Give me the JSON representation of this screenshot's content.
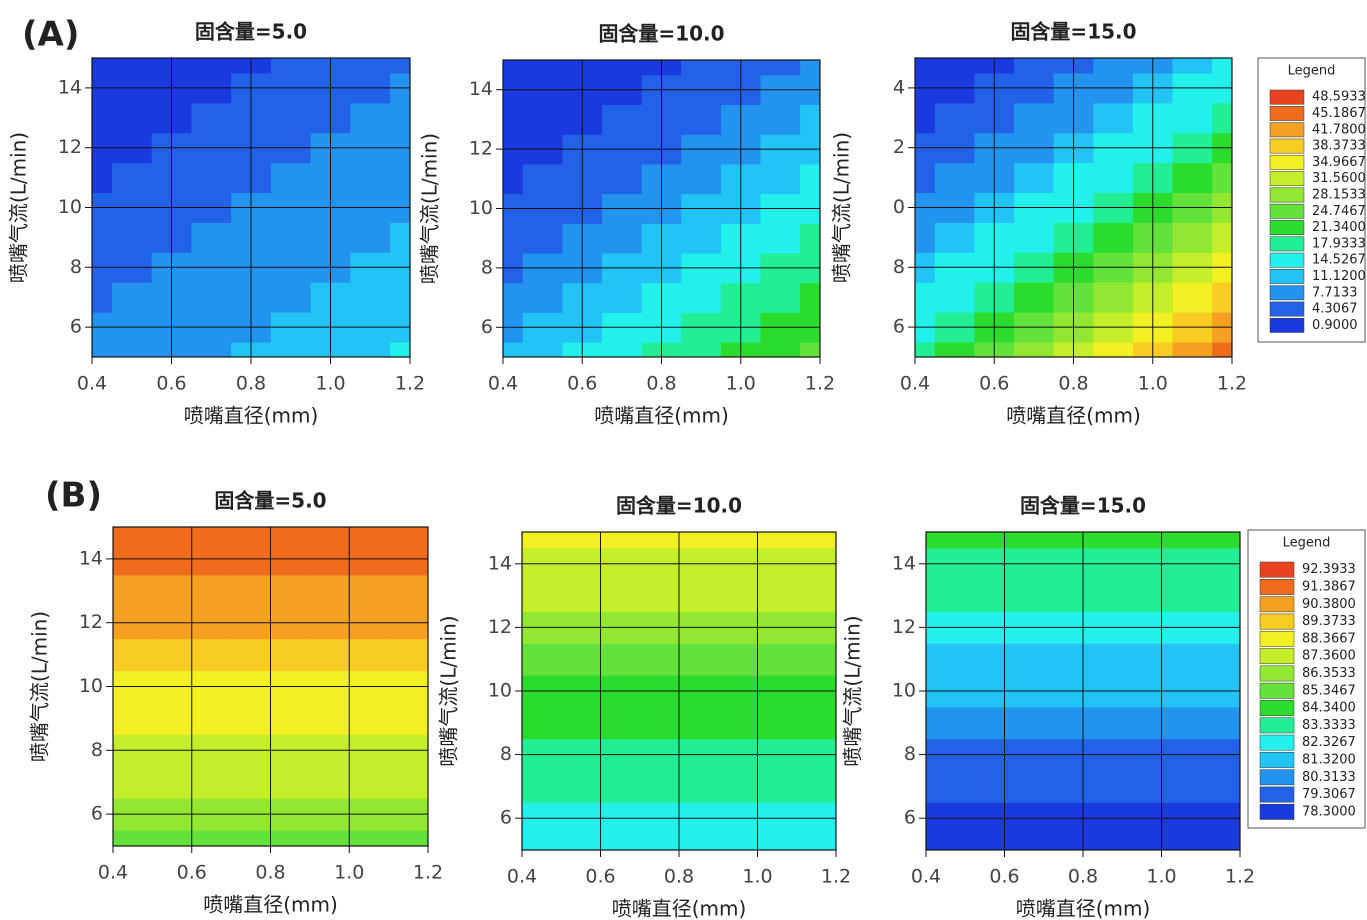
{
  "panels": [
    {
      "label": "(A)",
      "legend": {
        "title": "Legend",
        "levels": [
          48.5933,
          45.1867,
          {
            "value": 41.78,
            "label": "41.7800"
          },
          38.3733,
          34.9667,
          {
            "value": 31.56,
            "label": "31.5600"
          },
          28.1533,
          24.7467,
          {
            "value": 21.34,
            "label": "21.3400"
          },
          17.9333,
          14.5267,
          {
            "value": 11.12,
            "label": "11.1200"
          },
          7.7133,
          4.3067,
          {
            "value": 0.9,
            "label": "0.9000"
          }
        ],
        "colors": [
          "#e8421e",
          "#f06c1c",
          "#f5a020",
          "#f8cc22",
          "#f2f020",
          "#c4ee2a",
          "#92e830",
          "#62e23a",
          "#2cdc2c",
          "#22ee94",
          "#22f0ea",
          "#22c4f6",
          "#2294f0",
          "#2262e8",
          "#1a3ae0"
        ]
      }
    },
    {
      "label": "(B)",
      "legend": {
        "title": "Legend",
        "levels": [
          92.3933,
          91.3867,
          {
            "value": 90.38,
            "label": "90.3800"
          },
          89.3733,
          88.3667,
          {
            "value": 87.36,
            "label": "87.3600"
          },
          86.3533,
          85.3467,
          {
            "value": 84.34,
            "label": "84.3400"
          },
          83.3333,
          82.3267,
          {
            "value": 81.32,
            "label": "81.3200"
          },
          80.3133,
          79.3067,
          {
            "value": 78.3,
            "label": "78.3000"
          }
        ],
        "colors": [
          "#e8421e",
          "#f06c1c",
          "#f5a020",
          "#f8cc22",
          "#f2f020",
          "#c4ee2a",
          "#92e830",
          "#62e23a",
          "#2cdc2c",
          "#22ee94",
          "#22f0ea",
          "#22c4f6",
          "#2294f0",
          "#2262e8",
          "#1a3ae0"
        ]
      }
    }
  ],
  "chart_data": [
    {
      "type": "contour",
      "title": "固含量=5.0",
      "xlabel": "喷嘴直径(mm)",
      "ylabel": "喷嘴气流(L/min)",
      "grid": true,
      "xlim": [
        0.4,
        1.2
      ],
      "ylim": [
        5,
        15
      ],
      "xticks": [
        0.4,
        0.6,
        0.8,
        {
          "value": 1,
          "label": "1.0"
        },
        1.2
      ],
      "yticks": [
        6,
        8,
        10,
        12,
        14
      ],
      "x": [
        0.4,
        0.5,
        0.6,
        0.7,
        0.8,
        0.9,
        1.0,
        1.1,
        1.2
      ],
      "y": [
        5,
        6,
        7,
        8,
        9,
        10,
        11,
        12,
        13,
        14,
        15
      ],
      "z": [
        [
          8.7,
          9.5,
          10.3,
          11.1,
          11.9,
          12.6,
          13.4,
          14.2,
          15.0
        ],
        [
          7.9,
          8.7,
          9.5,
          10.3,
          11.1,
          11.9,
          12.6,
          13.4,
          14.2
        ],
        [
          7.2,
          7.9,
          8.7,
          9.5,
          10.3,
          11.1,
          11.9,
          12.6,
          13.4
        ],
        [
          6.4,
          7.2,
          7.9,
          8.7,
          9.5,
          10.3,
          11.1,
          11.9,
          12.6
        ],
        [
          5.6,
          6.4,
          7.2,
          7.9,
          8.7,
          9.5,
          10.3,
          11.1,
          11.9
        ],
        [
          4.8,
          5.6,
          6.4,
          7.2,
          7.9,
          8.7,
          9.5,
          10.3,
          11.1
        ],
        [
          4.0,
          4.8,
          5.6,
          6.4,
          7.2,
          7.9,
          8.7,
          9.5,
          10.3
        ],
        [
          3.2,
          4.0,
          4.8,
          5.6,
          6.4,
          7.2,
          7.9,
          8.7,
          9.5
        ],
        [
          2.5,
          3.2,
          4.0,
          4.8,
          5.6,
          6.4,
          7.2,
          7.9,
          8.7
        ],
        [
          1.7,
          2.5,
          3.2,
          4.0,
          4.8,
          5.6,
          6.4,
          7.2,
          7.9
        ],
        [
          0.9,
          1.7,
          2.5,
          3.2,
          4.0,
          4.8,
          5.6,
          6.4,
          7.2
        ]
      ]
    },
    {
      "type": "contour",
      "title": "固含量=10.0",
      "xlabel": "喷嘴直径(mm)",
      "ylabel": "喷嘴气流(L/min)",
      "grid": true,
      "xlim": [
        0.4,
        1.2
      ],
      "ylim": [
        5,
        15
      ],
      "xticks": [
        0.4,
        0.6,
        0.8,
        {
          "value": 1,
          "label": "1.0"
        },
        1.2
      ],
      "yticks": [
        6,
        8,
        10,
        12,
        14
      ],
      "x": [
        0.4,
        0.5,
        0.6,
        0.7,
        0.8,
        0.9,
        1.0,
        1.1,
        1.2
      ],
      "y": [
        5,
        6,
        7,
        8,
        9,
        10,
        11,
        12,
        13,
        14,
        15
      ],
      "z": [
        [
          11.4,
          12.9,
          14.6,
          16.3,
          18.2,
          20.0,
          22.0,
          23.9,
          26.0
        ],
        [
          9.8,
          11.4,
          12.9,
          14.6,
          16.3,
          18.2,
          20.0,
          22.0,
          23.9
        ],
        [
          8.4,
          9.8,
          11.4,
          12.9,
          14.6,
          16.3,
          18.2,
          20.0,
          22.0
        ],
        [
          7.1,
          8.4,
          9.8,
          11.4,
          12.9,
          14.6,
          16.3,
          18.2,
          20.0
        ],
        [
          5.8,
          7.1,
          8.4,
          9.8,
          11.4,
          12.9,
          14.6,
          16.3,
          18.2
        ],
        [
          4.7,
          5.8,
          7.1,
          8.4,
          9.8,
          11.4,
          12.9,
          14.6,
          16.3
        ],
        [
          3.6,
          4.7,
          5.8,
          7.1,
          8.4,
          9.8,
          11.4,
          12.9,
          14.6
        ],
        [
          2.7,
          3.6,
          4.7,
          5.8,
          7.1,
          8.4,
          9.8,
          11.4,
          12.9
        ],
        [
          1.9,
          2.7,
          3.6,
          4.7,
          5.8,
          7.1,
          8.4,
          9.8,
          11.4
        ],
        [
          1.3,
          1.9,
          2.7,
          3.6,
          4.7,
          5.8,
          7.1,
          8.4,
          9.8
        ],
        [
          1.0,
          1.3,
          1.9,
          2.7,
          3.6,
          4.7,
          5.8,
          7.1,
          8.4
        ]
      ]
    },
    {
      "type": "contour",
      "title": "固含量=15.0",
      "xlabel": "喷嘴直径(mm)",
      "ylabel": "喷嘴气流(L/min)",
      "grid": true,
      "xlim": [
        0.4,
        1.2
      ],
      "ylim": [
        5,
        15
      ],
      "xticks": [
        0.4,
        0.6,
        0.8,
        {
          "value": 1,
          "label": "1.0"
        },
        1.2
      ],
      "yticks": [
        6,
        8,
        {
          "value": 10,
          "label": "0"
        },
        {
          "value": 12,
          "label": "2"
        },
        {
          "value": 14,
          "label": "4"
        }
      ],
      "x": [
        0.4,
        0.5,
        0.6,
        0.7,
        0.8,
        0.9,
        1.0,
        1.1,
        1.2
      ],
      "y": [
        5,
        6,
        7,
        8,
        9,
        10,
        11,
        12,
        13,
        14,
        15
      ],
      "z": [
        [
          20.6,
          23.5,
          26.5,
          29.7,
          33.1,
          36.6,
          40.3,
          44.1,
          48.0
        ],
        [
          17.8,
          20.6,
          23.5,
          26.5,
          29.7,
          33.1,
          36.6,
          40.3,
          44.1
        ],
        [
          15.3,
          17.8,
          20.6,
          23.5,
          26.5,
          29.7,
          33.1,
          36.6,
          40.3
        ],
        [
          12.9,
          15.3,
          17.8,
          20.6,
          23.5,
          26.5,
          29.7,
          33.1,
          36.6
        ],
        [
          10.8,
          12.9,
          15.3,
          17.8,
          20.6,
          23.5,
          26.5,
          29.7,
          33.1
        ],
        [
          8.8,
          10.8,
          12.9,
          15.3,
          17.8,
          20.6,
          23.5,
          26.5,
          29.7
        ],
        [
          7.1,
          8.8,
          10.8,
          12.9,
          15.3,
          17.8,
          20.6,
          23.5,
          26.5
        ],
        [
          5.6,
          7.1,
          8.8,
          10.8,
          12.9,
          15.3,
          17.8,
          20.6,
          23.5
        ],
        [
          4.3,
          5.6,
          7.1,
          8.8,
          10.8,
          12.9,
          15.3,
          17.8,
          20.6
        ],
        [
          3.4,
          4.3,
          5.6,
          7.1,
          8.8,
          10.8,
          12.9,
          15.3,
          17.8
        ],
        [
          3.0,
          3.4,
          4.3,
          5.6,
          7.1,
          8.8,
          10.8,
          12.9,
          15.3
        ]
      ]
    },
    {
      "type": "contour",
      "title": "固含量=5.0",
      "xlabel": "喷嘴直径(mm)",
      "ylabel": "喷嘴气流(L/min)",
      "grid": true,
      "xlim": [
        0.4,
        1.2
      ],
      "ylim": [
        5,
        15
      ],
      "xticks": [
        0.4,
        0.6,
        0.8,
        {
          "value": 1,
          "label": "1.0"
        },
        1.2
      ],
      "yticks": [
        6,
        8,
        10,
        12,
        14
      ],
      "x": [
        0.4,
        0.6,
        0.8,
        1.0,
        1.2
      ],
      "y": [
        5,
        6,
        7,
        8,
        9,
        10,
        11,
        12,
        13,
        14,
        15
      ],
      "z": [
        [
          86.3,
          86.3,
          86.3,
          86.3,
          86.3
        ],
        [
          86.8,
          86.8,
          86.8,
          86.8,
          86.8
        ],
        [
          87.4,
          87.4,
          87.4,
          87.4,
          87.4
        ],
        [
          88.0,
          88.0,
          88.0,
          88.0,
          88.0
        ],
        [
          88.6,
          88.6,
          88.6,
          88.6,
          88.6
        ],
        [
          89.3,
          89.3,
          89.3,
          89.3,
          89.3
        ],
        [
          89.9,
          89.9,
          89.9,
          89.9,
          89.9
        ],
        [
          90.5,
          90.5,
          90.5,
          90.5,
          90.5
        ],
        [
          91.1,
          91.1,
          91.1,
          91.1,
          91.1
        ],
        [
          91.7,
          91.7,
          91.7,
          91.7,
          91.7
        ],
        [
          92.3,
          92.3,
          92.3,
          92.3,
          92.3
        ]
      ]
    },
    {
      "type": "contour",
      "title": "固含量=10.0",
      "xlabel": "喷嘴直径(mm)",
      "ylabel": "喷嘴气流(L/min)",
      "grid": true,
      "xlim": [
        0.4,
        1.2
      ],
      "ylim": [
        5,
        15
      ],
      "xticks": [
        0.4,
        0.6,
        0.8,
        {
          "value": 1,
          "label": "1.0"
        },
        1.2
      ],
      "yticks": [
        6,
        8,
        10,
        12,
        14
      ],
      "x": [
        0.4,
        0.6,
        0.8,
        1.0,
        1.2
      ],
      "y": [
        5,
        6,
        7,
        8,
        9,
        10,
        11,
        12,
        13,
        14,
        15
      ],
      "z": [
        [
          82.5,
          82.5,
          82.5,
          82.5,
          82.5
        ],
        [
          83.1,
          83.1,
          83.1,
          83.1,
          83.1
        ],
        [
          83.7,
          83.7,
          83.7,
          83.7,
          83.7
        ],
        [
          84.3,
          84.3,
          84.3,
          84.3,
          84.3
        ],
        [
          84.7,
          84.7,
          84.7,
          84.7,
          84.7
        ],
        [
          85.3,
          85.3,
          85.3,
          85.3,
          85.3
        ],
        [
          86.0,
          86.0,
          86.0,
          86.0,
          86.0
        ],
        [
          86.8,
          86.8,
          86.8,
          86.8,
          86.8
        ],
        [
          87.5,
          87.5,
          87.5,
          87.5,
          87.5
        ],
        [
          88.3,
          88.3,
          88.3,
          88.3,
          88.3
        ],
        [
          89.0,
          89.0,
          89.0,
          89.0,
          89.0
        ]
      ]
    },
    {
      "type": "contour",
      "title": "固含量=15.0",
      "xlabel": "喷嘴直径(mm)",
      "ylabel": "喷嘴气流(L/min)",
      "grid": true,
      "xlim": [
        0.4,
        1.2
      ],
      "ylim": [
        5,
        15
      ],
      "xticks": [
        0.4,
        0.6,
        0.8,
        {
          "value": 1,
          "label": "1.0"
        },
        1.2
      ],
      "yticks": [
        6,
        8,
        10,
        12,
        14
      ],
      "x": [
        0.4,
        0.6,
        0.8,
        1.0,
        1.2
      ],
      "y": [
        5,
        6,
        7,
        8,
        9,
        10,
        11,
        12,
        13,
        14,
        15
      ],
      "z": [
        [
          78.4,
          78.4,
          78.4,
          78.4,
          78.4
        ],
        [
          79.0,
          79.0,
          79.0,
          79.0,
          79.0
        ],
        [
          79.6,
          79.6,
          79.6,
          79.6,
          79.6
        ],
        [
          80.2,
          80.2,
          80.2,
          80.2,
          80.2
        ],
        [
          80.9,
          80.9,
          80.9,
          80.9,
          80.9
        ],
        [
          81.5,
          81.5,
          81.5,
          81.5,
          81.5
        ],
        [
          82.1,
          82.1,
          82.1,
          82.1,
          82.1
        ],
        [
          82.8,
          82.8,
          82.8,
          82.8,
          82.8
        ],
        [
          83.4,
          83.4,
          83.4,
          83.4,
          83.4
        ],
        [
          84.0,
          84.0,
          84.0,
          84.0,
          84.0
        ],
        [
          84.6,
          84.6,
          84.6,
          84.6,
          84.6
        ]
      ]
    }
  ]
}
